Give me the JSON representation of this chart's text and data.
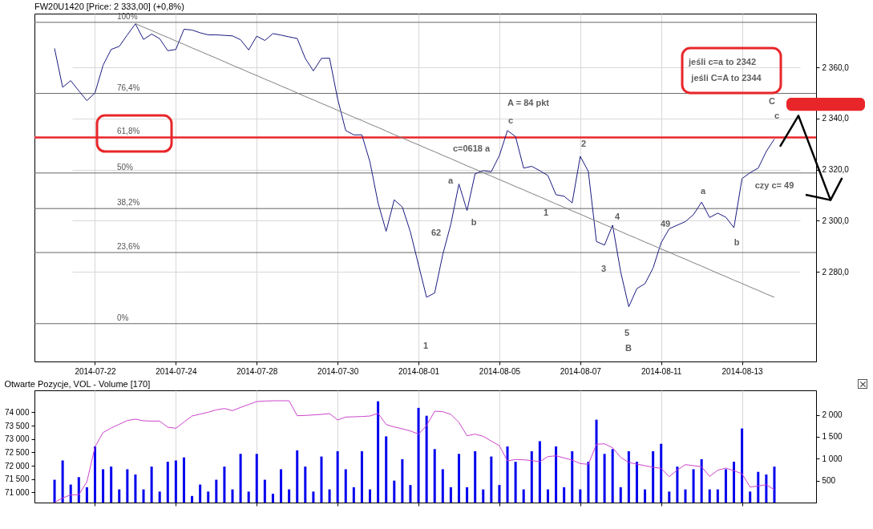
{
  "chart_data": [
    {
      "type": "line",
      "title": "FW20U1420 [Price: 2 333,00] (+0,8%)",
      "categories": [
        null,
        null,
        null,
        null,
        null,
        "2014-07-22",
        null,
        null,
        null,
        null,
        null,
        null,
        null,
        null,
        null,
        "2014-07-24",
        null,
        null,
        null,
        null,
        null,
        null,
        null,
        null,
        null,
        "2014-07-28",
        null,
        null,
        null,
        null,
        null,
        null,
        null,
        null,
        null,
        "2014-07-30",
        null,
        null,
        null,
        null,
        null,
        null,
        null,
        null,
        null,
        "2014-08-01",
        null,
        null,
        null,
        null,
        null,
        null,
        null,
        null,
        null,
        "2014-08-05",
        null,
        null,
        null,
        null,
        null,
        null,
        null,
        null,
        null,
        "2014-08-07",
        null,
        null,
        null,
        null,
        null,
        null,
        null,
        null,
        null,
        "2014-08-11",
        null,
        null,
        null,
        null,
        null,
        null,
        null,
        null,
        null,
        "2014-08-13",
        null,
        null,
        null,
        null
      ],
      "ylim": [
        2245,
        2381
      ],
      "yticks": [
        {
          "value": 2280,
          "label": "2 280,0"
        },
        {
          "value": 2300,
          "label": "2 300,0"
        },
        {
          "value": 2320,
          "label": "2 320,0"
        },
        {
          "value": 2340,
          "label": "2 340,0"
        },
        {
          "value": 2360,
          "label": "2 360,0"
        }
      ],
      "y2lim": [
        -12.56,
        102.89
      ],
      "grid": true,
      "series": [
        {
          "color": "#1a1a80",
          "values": [
            2367.4,
            2352.2,
            2354.8,
            2350.8,
            2347.0,
            2350.0,
            2360.8,
            2367.0,
            2368.2,
            2372.7,
            2377.0,
            2370.9,
            2373.0,
            2371.2,
            2366.5,
            2367.0,
            2374.9,
            2374.6,
            2373.5,
            2372.7,
            2372.7,
            2372.5,
            2372.3,
            2370.8,
            2366.8,
            2372.2,
            2370.5,
            2373.2,
            2372.6,
            2371.9,
            2371.3,
            2363.5,
            2358.6,
            2363.5,
            2363.6,
            2347.7,
            2335.3,
            2333.6,
            2333.6,
            2323.0,
            2307.0,
            2295.9,
            2308.2,
            2305.4,
            2295.6,
            2282.8,
            2270.1,
            2271.8,
            2286.8,
            2298.7,
            2314.4,
            2304.0,
            2318.4,
            2319.6,
            2319.2,
            2325.5,
            2335.3,
            2332.9,
            2320.6,
            2321.3,
            2319.6,
            2317.7,
            2310.2,
            2309.6,
            2307.0,
            2325.2,
            2319.3,
            2291.9,
            2290.5,
            2298.3,
            2280.0,
            2266.4,
            2273.5,
            2275.4,
            2281.5,
            2291.4,
            2296.9,
            2298.3,
            2299.7,
            2302.4,
            2307.3,
            2301.3,
            2303.0,
            2301.4,
            2297.3,
            2316.5,
            2318.8,
            2320.6,
            2327.1,
            2332.0
          ]
        },
        {
          "type": "line",
          "color": "#808080",
          "values": [
            null,
            null,
            null,
            null,
            null,
            null,
            null,
            null,
            null,
            null,
            2377.1,
            2375.7,
            2374.4,
            2373.0,
            2371.7,
            2370.3,
            2369.0,
            2367.6,
            2366.3,
            2364.9,
            2363.6,
            2362.2,
            2360.8,
            2359.5,
            2358.1,
            2356.8,
            2355.4,
            2354.1,
            2352.7,
            2351.4,
            2350.0,
            2348.6,
            2347.3,
            2345.9,
            2344.6,
            2343.2,
            2341.9,
            2340.5,
            2339.2,
            2337.8,
            2336.5,
            2335.1,
            2333.7,
            2332.4,
            2331.0,
            2329.7,
            2328.3,
            2327.0,
            2325.6,
            2324.3,
            2322.9,
            2321.5,
            2320.2,
            2318.8,
            2317.5,
            2316.1,
            2314.8,
            2313.4,
            2312.1,
            2310.7,
            2309.4,
            2308.0,
            2306.6,
            2305.3,
            2303.9,
            2302.6,
            2301.2,
            2299.9,
            2298.5,
            2297.2,
            2295.8,
            2294.4,
            2293.1,
            2291.7,
            2290.4,
            2289.0,
            2287.7,
            2286.3,
            2285.0,
            2283.6,
            2282.3,
            2280.9,
            2279.5,
            2278.2,
            2276.8,
            2275.5,
            2274.1,
            2272.8,
            2271.4,
            2270.1
          ]
        }
      ],
      "ref_lines": [
        {
          "axis": "y2",
          "value": 100,
          "label": "100%"
        },
        {
          "axis": "y2",
          "value": 76.4,
          "label": "76,4%"
        },
        {
          "axis": "y2",
          "value": 61.8,
          "label": "61,8%",
          "color": "#e8262a"
        },
        {
          "axis": "y2",
          "value": 50,
          "label": "50%"
        },
        {
          "axis": "y2",
          "value": 38.2,
          "label": "38,2%"
        },
        {
          "axis": "y2",
          "value": 23.6,
          "label": "23,6%"
        },
        {
          "axis": "y2",
          "value": 0,
          "label": "0%"
        }
      ],
      "annotations": [
        "62",
        "a",
        "b",
        "c=0618 a",
        "c",
        "A = 84 pkt",
        "2",
        "1",
        "4",
        "3",
        "5",
        "B",
        "1",
        "49",
        "a",
        "b",
        "c",
        "C",
        "czy c= 49",
        "jeśli c=a to 2342",
        "jeśli C=A to 2344"
      ]
    },
    {
      "type": "bar",
      "title": "Otwarte Pozycje, VOL - Volume [170]",
      "categories": [
        null,
        null,
        null,
        null,
        null,
        "2014-07-22",
        null,
        null,
        null,
        null,
        null,
        null,
        null,
        null,
        null,
        "2014-07-24",
        null,
        null,
        null,
        null,
        null,
        null,
        null,
        null,
        null,
        "2014-07-28",
        null,
        null,
        null,
        null,
        null,
        null,
        null,
        null,
        null,
        "2014-07-30",
        null,
        null,
        null,
        null,
        null,
        null,
        null,
        null,
        null,
        "2014-08-01",
        null,
        null,
        null,
        null,
        null,
        null,
        null,
        null,
        null,
        "2014-08-05",
        null,
        null,
        null,
        null,
        null,
        null,
        null,
        null,
        null,
        "2014-08-07",
        null,
        null,
        null,
        null,
        null,
        null,
        null,
        null,
        null,
        "2014-08-11",
        null,
        null,
        null,
        null,
        null,
        null,
        null,
        null,
        null,
        "2014-08-13",
        null,
        null,
        null,
        null
      ],
      "tick_labels": "y",
      "ylim": [
        70620,
        74820
      ],
      "yticks": [
        {
          "value": 71000,
          "label": "71 000"
        },
        {
          "value": 71500,
          "label": "71 500"
        },
        {
          "value": 72000,
          "label": "72 000"
        },
        {
          "value": 72500,
          "label": "72 500"
        },
        {
          "value": 73000,
          "label": "73 000"
        },
        {
          "value": 73500,
          "label": "73 500"
        },
        {
          "value": 74000,
          "label": "74 000"
        }
      ],
      "y2lim": [
        0,
        2560
      ],
      "y2ticks": [
        500,
        {
          "value": 1000,
          "label": "1 000"
        },
        {
          "value": 1500,
          "label": "1 500"
        },
        {
          "value": 2000,
          "label": "2 000"
        }
      ],
      "grid": "x",
      "series": [
        {
          "axis": "y2",
          "color": "#0000ee",
          "values": [
            520,
            960,
            410,
            580,
            350,
            1280,
            760,
            820,
            300,
            760,
            640,
            300,
            820,
            250,
            930,
            960,
            1030,
            150,
            410,
            250,
            520,
            820,
            300,
            1110,
            250,
            1110,
            520,
            200,
            760,
            300,
            1190,
            820,
            250,
            1050,
            300,
            1170,
            760,
            350,
            1170,
            300,
            2310,
            1510,
            500,
            990,
            400,
            2160,
            1980,
            1220,
            760,
            350,
            1110,
            350,
            1170,
            300,
            1050,
            400,
            1280,
            930,
            300,
            1170,
            1400,
            300,
            1280,
            350,
            1170,
            300,
            930,
            1890,
            1110,
            1220,
            350,
            1170,
            930,
            300,
            1170,
            1340,
            250,
            820,
            300,
            760,
            990,
            300,
            300,
            760,
            930,
            1690,
            250,
            700,
            640,
            820
          ]
        },
        {
          "type": "line",
          "color": "#cc44cc",
          "values": [
            70630,
            70790,
            70910,
            70910,
            71400,
            72700,
            73240,
            73410,
            73550,
            73690,
            73740,
            73680,
            73670,
            73670,
            73440,
            73400,
            73630,
            73860,
            73930,
            74000,
            74090,
            74140,
            74060,
            74180,
            74290,
            74400,
            74420,
            74430,
            74430,
            74430,
            73870,
            73880,
            73900,
            73920,
            73950,
            73710,
            73820,
            73830,
            73840,
            73860,
            73960,
            73540,
            73450,
            73380,
            73300,
            73180,
            73500,
            74040,
            74020,
            73920,
            73620,
            73120,
            73180,
            73100,
            72920,
            72750,
            72180,
            72230,
            72220,
            72190,
            72150,
            72340,
            72370,
            72290,
            72210,
            72080,
            72050,
            72800,
            72820,
            72670,
            72310,
            72120,
            72060,
            72000,
            71940,
            71900,
            71590,
            71840,
            72040,
            72000,
            71960,
            71600,
            71830,
            71910,
            71810,
            71700,
            71200,
            71240,
            71290,
            71100
          ]
        }
      ]
    }
  ]
}
